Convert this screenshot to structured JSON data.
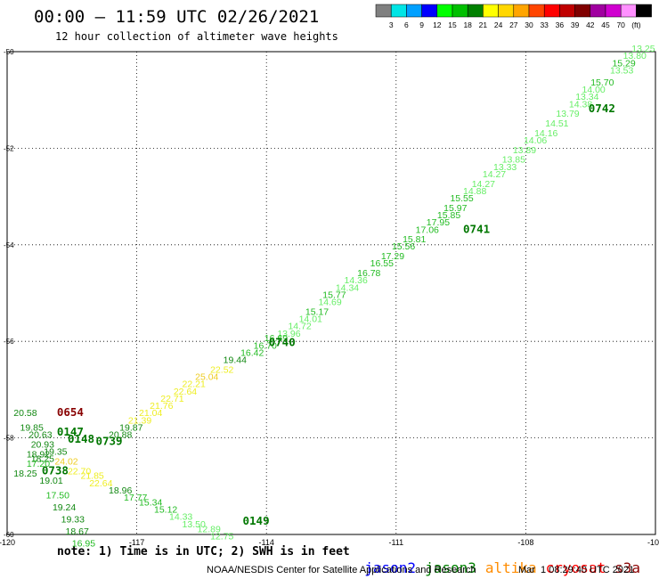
{
  "title": "00:00 – 11:59 UTC 02/26/2021",
  "subtitle": "12 hour collection of altimeter wave heights",
  "colorbar": {
    "colors": [
      "#808080",
      "#00e5e5",
      "#00a0ff",
      "#0000ff",
      "#00ff00",
      "#00c000",
      "#008000",
      "#ffff00",
      "#ffd700",
      "#ffa500",
      "#ff4500",
      "#ff0000",
      "#c00000",
      "#800000",
      "#a000a0",
      "#d000d0",
      "#ff90ff",
      "#000000"
    ],
    "labels": [
      "3",
      "6",
      "9",
      "12",
      "15",
      "18",
      "21",
      "24",
      "27",
      "30",
      "33",
      "36",
      "39",
      "42",
      "45",
      "70",
      "(ft)"
    ]
  },
  "chart_data": {
    "type": "scatter",
    "title": "00:00 – 11:59 UTC 02/26/2021",
    "subtitle": "12 hour collection of altimeter wave heights",
    "x_ticks": [
      -120,
      -117,
      -114,
      -111,
      -108,
      -105
    ],
    "y_ticks": [
      -50,
      -52,
      -54,
      -56,
      -58,
      -60
    ],
    "x_tick_labels": [
      "-120",
      "-117",
      "-114",
      "-111",
      "-108",
      "-105"
    ],
    "y_tick_labels": [
      "-50",
      "-52",
      "-54",
      "-56",
      "-58",
      "-60"
    ],
    "xlim": [
      -120,
      -105
    ],
    "ylim": [
      -60,
      -50
    ],
    "grid": true,
    "colors": {
      "c15": "#66ee66",
      "c18": "#22bb22",
      "c21": "#118811",
      "c24": "#eeee22",
      "c27": "#eecc22",
      "pass_label": "#007700",
      "pass_label_s3a": "#880000"
    },
    "time_labels": [
      {
        "text": "0742",
        "lon": -106.55,
        "lat": -51.25,
        "color": "pass_label"
      },
      {
        "text": "0741",
        "lon": -109.45,
        "lat": -53.75,
        "color": "pass_label"
      },
      {
        "text": "0740",
        "lon": -113.95,
        "lat": -56.1,
        "color": "pass_label"
      },
      {
        "text": "0739",
        "lon": -117.95,
        "lat": -58.15,
        "color": "pass_label"
      },
      {
        "text": "0738",
        "lon": -119.2,
        "lat": -58.75,
        "color": "pass_label"
      },
      {
        "text": "0654",
        "lon": -118.85,
        "lat": -57.55,
        "color": "pass_label_s3a"
      },
      {
        "text": "0147",
        "lon": -118.85,
        "lat": -57.95,
        "color": "pass_label"
      },
      {
        "text": "0148",
        "lon": -118.6,
        "lat": -58.1,
        "color": "pass_label"
      },
      {
        "text": "0149",
        "lon": -114.55,
        "lat": -59.8,
        "color": "pass_label"
      }
    ],
    "points": [
      {
        "v": "13.25",
        "lon": -105.55,
        "lat": -50.0,
        "c": "c15"
      },
      {
        "v": "13.80",
        "lon": -105.75,
        "lat": -50.15,
        "c": "c15"
      },
      {
        "v": "15.29",
        "lon": -106.0,
        "lat": -50.3,
        "c": "c18"
      },
      {
        "v": "13.53",
        "lon": -106.05,
        "lat": -50.45,
        "c": "c15"
      },
      {
        "v": "15.70",
        "lon": -106.5,
        "lat": -50.7,
        "c": "c18"
      },
      {
        "v": "14.00",
        "lon": -106.7,
        "lat": -50.85,
        "c": "c15"
      },
      {
        "v": "13.34",
        "lon": -106.85,
        "lat": -51.0,
        "c": "c15"
      },
      {
        "v": "14.38",
        "lon": -107.0,
        "lat": -51.15,
        "c": "c15"
      },
      {
        "v": "13.79",
        "lon": -107.3,
        "lat": -51.35,
        "c": "c15"
      },
      {
        "v": "14.51",
        "lon": -107.55,
        "lat": -51.55,
        "c": "c15"
      },
      {
        "v": "14.16",
        "lon": -107.8,
        "lat": -51.75,
        "c": "c15"
      },
      {
        "v": "14.06",
        "lon": -108.05,
        "lat": -51.9,
        "c": "c15"
      },
      {
        "v": "13.89",
        "lon": -108.3,
        "lat": -52.1,
        "c": "c15"
      },
      {
        "v": "13.85",
        "lon": -108.55,
        "lat": -52.3,
        "c": "c15"
      },
      {
        "v": "13.33",
        "lon": -108.75,
        "lat": -52.45,
        "c": "c15"
      },
      {
        "v": "14.27",
        "lon": -109.0,
        "lat": -52.6,
        "c": "c15"
      },
      {
        "v": "14.27",
        "lon": -109.25,
        "lat": -52.8,
        "c": "c15"
      },
      {
        "v": "14.88",
        "lon": -109.45,
        "lat": -52.95,
        "c": "c15"
      },
      {
        "v": "15.55",
        "lon": -109.75,
        "lat": -53.1,
        "c": "c18"
      },
      {
        "v": "15.97",
        "lon": -109.9,
        "lat": -53.3,
        "c": "c18"
      },
      {
        "v": "15.85",
        "lon": -110.05,
        "lat": -53.45,
        "c": "c18"
      },
      {
        "v": "17.95",
        "lon": -110.3,
        "lat": -53.6,
        "c": "c18"
      },
      {
        "v": "17.06",
        "lon": -110.55,
        "lat": -53.75,
        "c": "c18"
      },
      {
        "v": "15.81",
        "lon": -110.85,
        "lat": -53.95,
        "c": "c18"
      },
      {
        "v": "15.56",
        "lon": -111.1,
        "lat": -54.1,
        "c": "c18"
      },
      {
        "v": "17.29",
        "lon": -111.35,
        "lat": -54.3,
        "c": "c18"
      },
      {
        "v": "16.55",
        "lon": -111.6,
        "lat": -54.45,
        "c": "c18"
      },
      {
        "v": "16.78",
        "lon": -111.9,
        "lat": -54.65,
        "c": "c18"
      },
      {
        "v": "14.36",
        "lon": -112.2,
        "lat": -54.8,
        "c": "c15"
      },
      {
        "v": "14.34",
        "lon": -112.4,
        "lat": -54.95,
        "c": "c15"
      },
      {
        "v": "15.77",
        "lon": -112.7,
        "lat": -55.1,
        "c": "c18"
      },
      {
        "v": "14.69",
        "lon": -112.8,
        "lat": -55.25,
        "c": "c15"
      },
      {
        "v": "15.17",
        "lon": -113.1,
        "lat": -55.45,
        "c": "c18"
      },
      {
        "v": "14.01",
        "lon": -113.25,
        "lat": -55.6,
        "c": "c15"
      },
      {
        "v": "14.72",
        "lon": -113.5,
        "lat": -55.75,
        "c": "c15"
      },
      {
        "v": "13.96",
        "lon": -113.75,
        "lat": -55.9,
        "c": "c15"
      },
      {
        "v": "16.69",
        "lon": -114.05,
        "lat": -56.0,
        "c": "c18"
      },
      {
        "v": "16.70",
        "lon": -114.3,
        "lat": -56.15,
        "c": "c18"
      },
      {
        "v": "16.42",
        "lon": -114.6,
        "lat": -56.3,
        "c": "c18"
      },
      {
        "v": "19.44",
        "lon": -115.0,
        "lat": -56.45,
        "c": "c21"
      },
      {
        "v": "22.52",
        "lon": -115.3,
        "lat": -56.65,
        "c": "c24"
      },
      {
        "v": "25.04",
        "lon": -115.65,
        "lat": -56.8,
        "c": "c27"
      },
      {
        "v": "22.21",
        "lon": -115.95,
        "lat": -56.95,
        "c": "c24"
      },
      {
        "v": "22.64",
        "lon": -116.15,
        "lat": -57.1,
        "c": "c24"
      },
      {
        "v": "22.71",
        "lon": -116.45,
        "lat": -57.25,
        "c": "c24"
      },
      {
        "v": "21.76",
        "lon": -116.7,
        "lat": -57.4,
        "c": "c24"
      },
      {
        "v": "21.04",
        "lon": -116.95,
        "lat": -57.55,
        "c": "c24"
      },
      {
        "v": "21.39",
        "lon": -117.2,
        "lat": -57.7,
        "c": "c24"
      },
      {
        "v": "19.87",
        "lon": -117.4,
        "lat": -57.85,
        "c": "c21"
      },
      {
        "v": "20.88",
        "lon": -117.65,
        "lat": -58.0,
        "c": "c21"
      },
      {
        "v": "20.58",
        "lon": -119.85,
        "lat": -57.55,
        "c": "c21"
      },
      {
        "v": "19.85",
        "lon": -119.7,
        "lat": -57.85,
        "c": "c21"
      },
      {
        "v": "20.63",
        "lon": -119.5,
        "lat": -58.0,
        "c": "c21"
      },
      {
        "v": "20.93",
        "lon": -119.45,
        "lat": -58.2,
        "c": "c21"
      },
      {
        "v": "19.35",
        "lon": -119.15,
        "lat": -58.35,
        "c": "c21"
      },
      {
        "v": "18.92",
        "lon": -119.55,
        "lat": -58.4,
        "c": "c21"
      },
      {
        "v": "18.25",
        "lon": -119.45,
        "lat": -58.5,
        "c": "c21"
      },
      {
        "v": "24.02",
        "lon": -118.9,
        "lat": -58.55,
        "c": "c27"
      },
      {
        "v": "17.20",
        "lon": -119.55,
        "lat": -58.6,
        "c": "c18"
      },
      {
        "v": "18.25",
        "lon": -119.85,
        "lat": -58.8,
        "c": "c21"
      },
      {
        "v": "22.70",
        "lon": -118.6,
        "lat": -58.75,
        "c": "c24"
      },
      {
        "v": "19.01",
        "lon": -119.25,
        "lat": -58.95,
        "c": "c21"
      },
      {
        "v": "21.85",
        "lon": -118.3,
        "lat": -58.85,
        "c": "c24"
      },
      {
        "v": "22.64",
        "lon": -118.1,
        "lat": -59.0,
        "c": "c24"
      },
      {
        "v": "17.50",
        "lon": -119.1,
        "lat": -59.25,
        "c": "c18"
      },
      {
        "v": "18.96",
        "lon": -117.65,
        "lat": -59.15,
        "c": "c21"
      },
      {
        "v": "17.77",
        "lon": -117.3,
        "lat": -59.3,
        "c": "c18"
      },
      {
        "v": "15.34",
        "lon": -116.95,
        "lat": -59.4,
        "c": "c18"
      },
      {
        "v": "19.24",
        "lon": -118.95,
        "lat": -59.5,
        "c": "c21"
      },
      {
        "v": "15.12",
        "lon": -116.6,
        "lat": -59.55,
        "c": "c18"
      },
      {
        "v": "14.33",
        "lon": -116.25,
        "lat": -59.7,
        "c": "c15"
      },
      {
        "v": "19.33",
        "lon": -118.75,
        "lat": -59.75,
        "c": "c21"
      },
      {
        "v": "13.50",
        "lon": -115.95,
        "lat": -59.85,
        "c": "c15"
      },
      {
        "v": "18.67",
        "lon": -118.65,
        "lat": -60.0,
        "c": "c21"
      },
      {
        "v": "12.89",
        "lon": -115.6,
        "lat": -59.95,
        "c": "c15"
      },
      {
        "v": "12.75",
        "lon": -115.3,
        "lat": -60.1,
        "c": "c15"
      },
      {
        "v": "16.95",
        "lon": -118.5,
        "lat": -60.25,
        "c": "c18"
      }
    ]
  },
  "footnote": "note: 1) Time is in UTC; 2) SWH is in feet",
  "satellites": [
    {
      "name": "jason2",
      "color": "#0000ff"
    },
    {
      "name": "jason3",
      "color": "#008000"
    },
    {
      "name": "altika",
      "color": "#ff8c00"
    },
    {
      "name": "cryosat",
      "color": "#ff0000"
    },
    {
      "name": "s3a",
      "color": "#8b0000"
    }
  ],
  "credit": "NOAA/NESDIS Center for Satellite Applications and Research",
  "credit_time": "Mar  1 08:29:40 UTC 2021"
}
